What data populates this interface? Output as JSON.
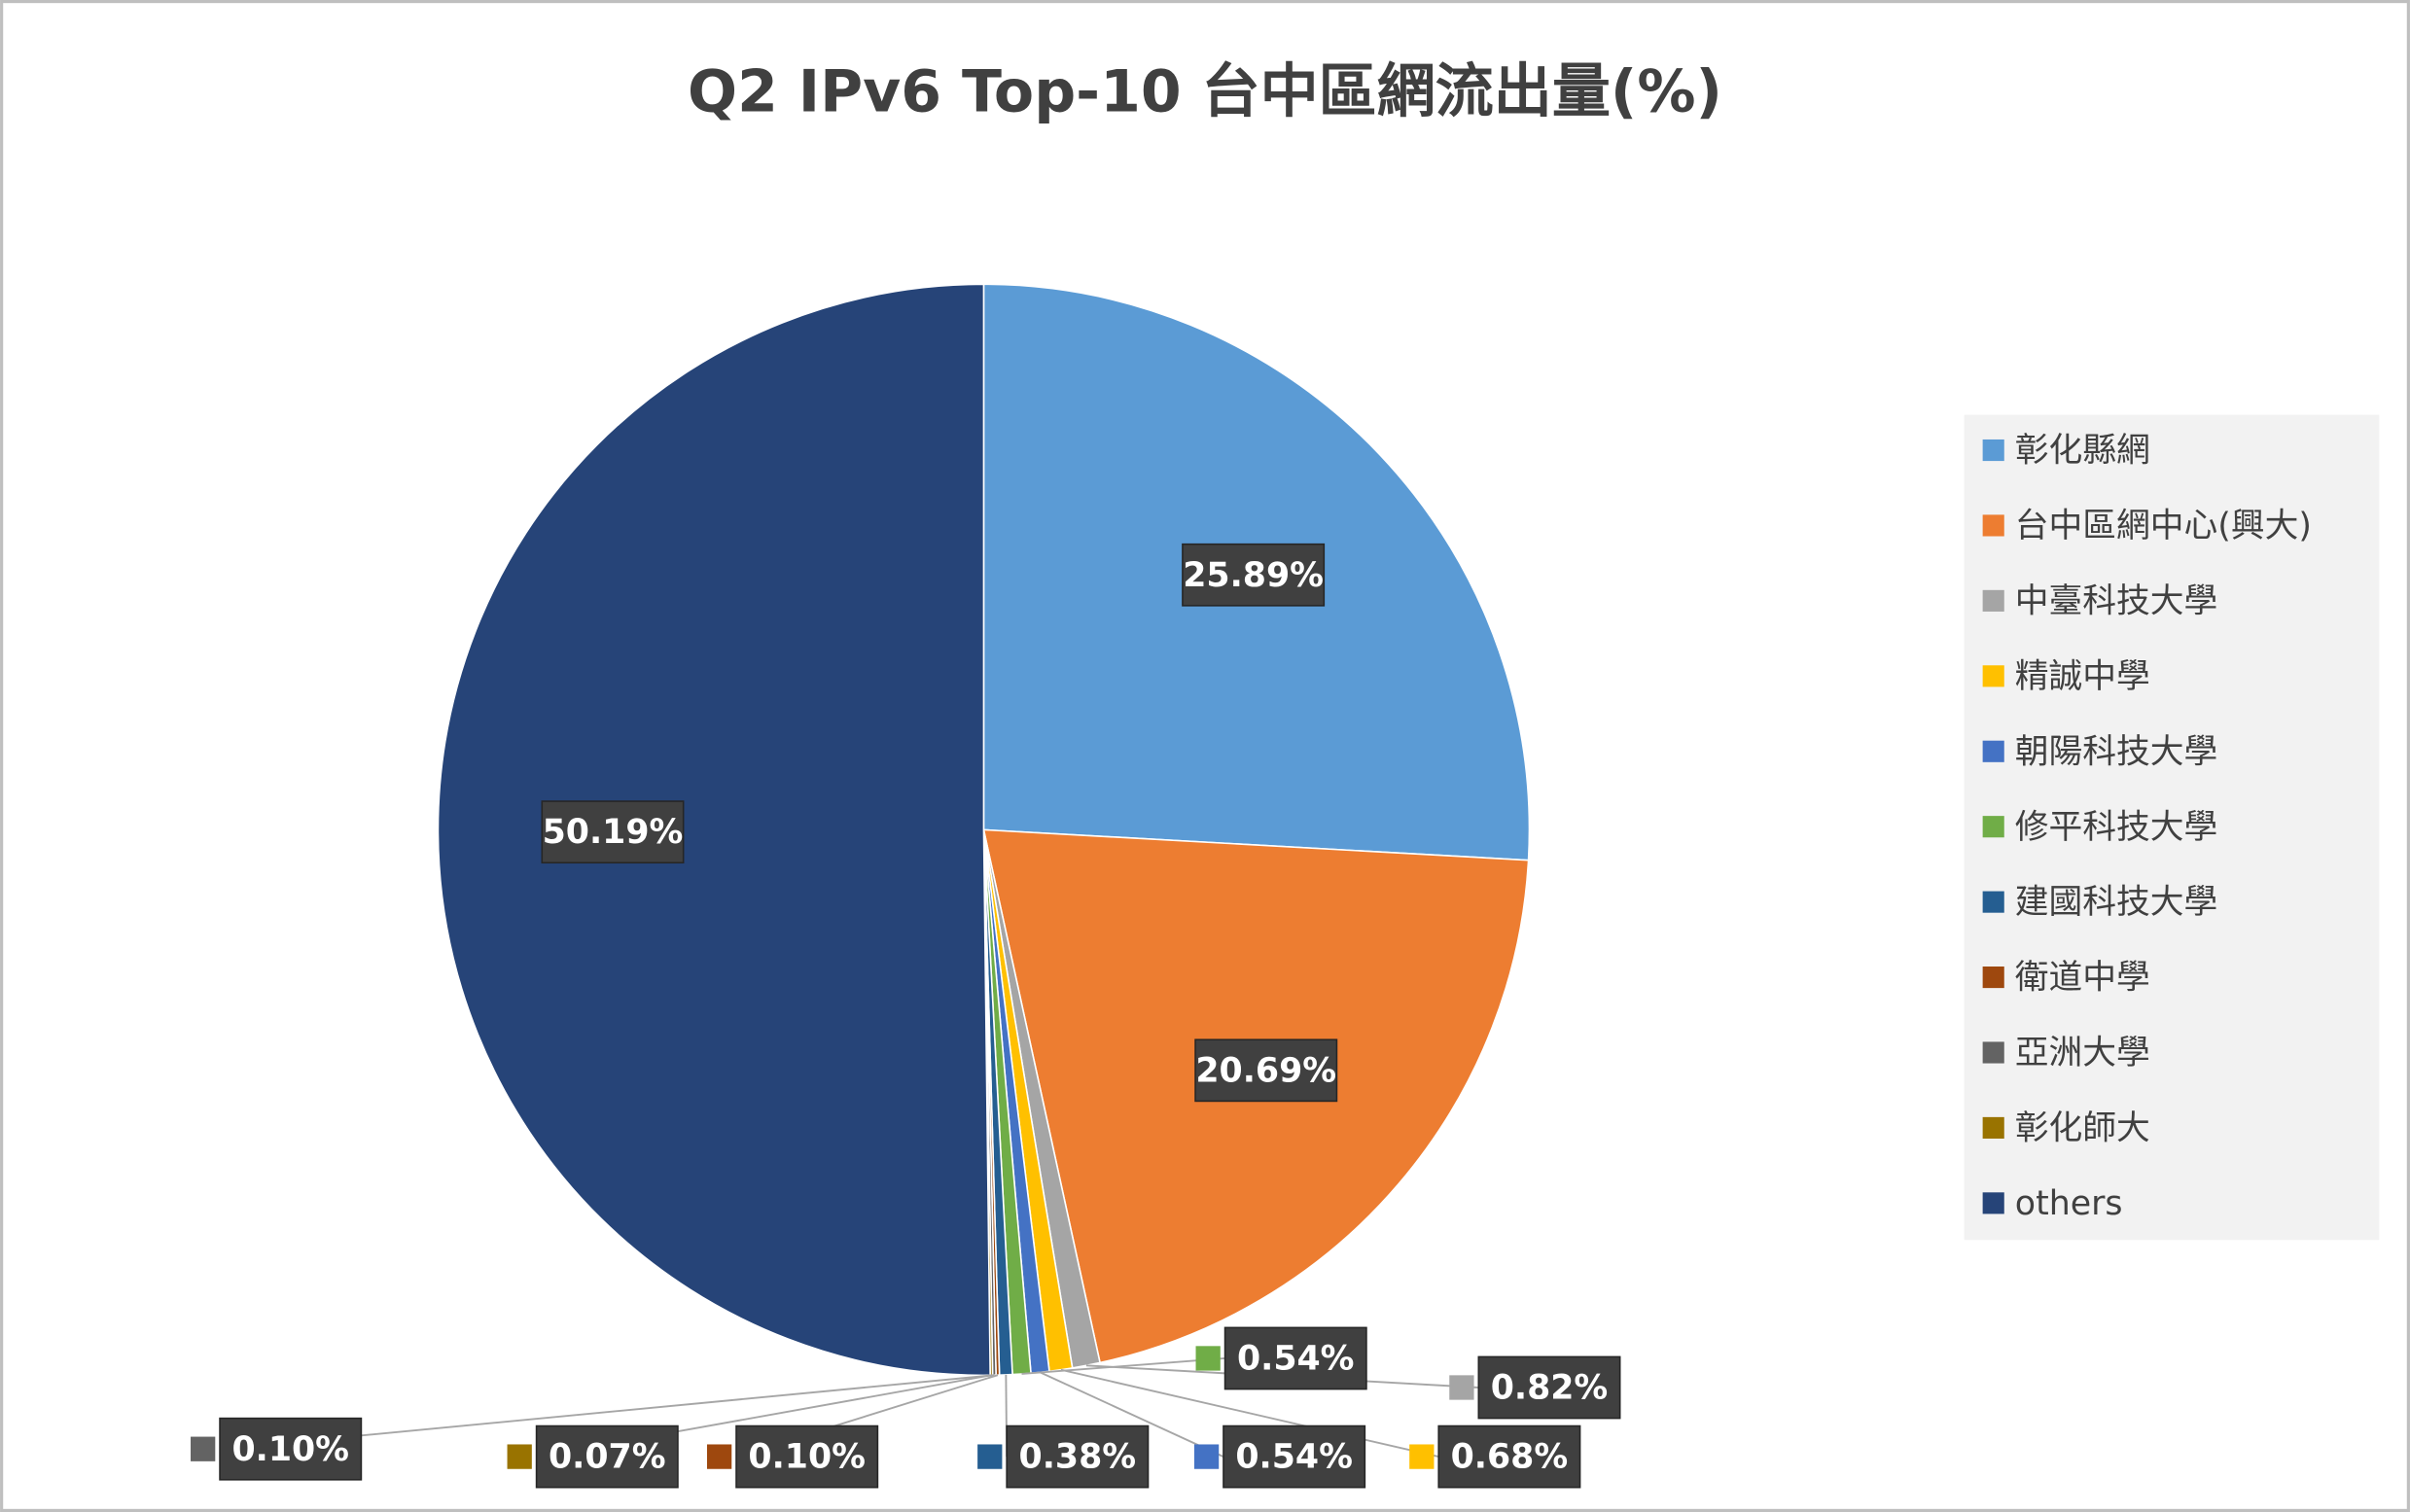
{
  "chart_data": {
    "type": "pie",
    "title": "Q2 IPv6 Top-10 台中區網流出量(%)",
    "categories": [
      "彰化縣網",
      "台中區網中心(興大)",
      "中臺科技大學",
      "精誠中學",
      "朝陽科技大學",
      "修平科技大學",
      "建國科技大學",
      "衛道中學",
      "亞洲大學",
      "彰化師大",
      "others"
    ],
    "values": [
      25.89,
      20.69,
      0.82,
      0.68,
      0.54,
      0.54,
      0.38,
      0.1,
      0.1,
      0.07,
      50.19
    ],
    "value_labels": [
      "25.89%",
      "20.69%",
      "0.82%",
      "0.68%",
      "0.54%",
      "0.54%",
      "0.38%",
      "0.10%",
      "0.10%",
      "0.07%",
      "50.19%"
    ],
    "colors": [
      "#5b9bd5",
      "#ed7d31",
      "#a5a5a5",
      "#ffc000",
      "#4472c4",
      "#70ad47",
      "#255e91",
      "#9e480e",
      "#636363",
      "#997300",
      "#264478"
    ],
    "legend": "right"
  }
}
